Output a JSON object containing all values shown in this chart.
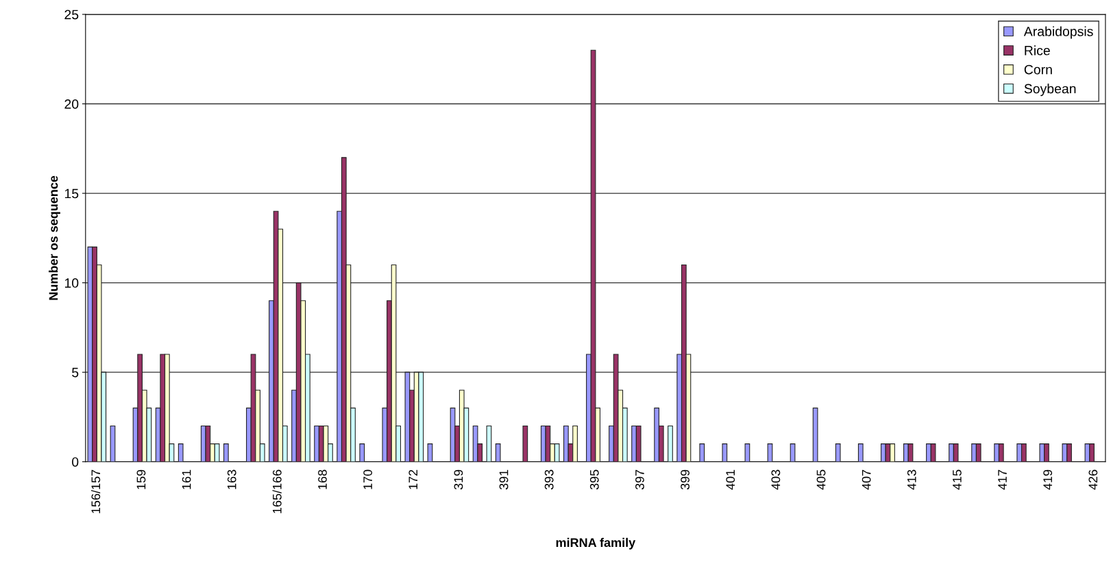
{
  "chart_data": {
    "type": "bar",
    "xlabel": "miRNA family",
    "ylabel": "Number os sequence",
    "categories": [
      "156/157",
      null,
      "159",
      null,
      "161",
      null,
      "163",
      null,
      "165/166",
      null,
      "168",
      null,
      "170",
      null,
      "172",
      null,
      "319",
      null,
      "391",
      null,
      "393",
      null,
      "395",
      null,
      "397",
      null,
      "399",
      null,
      "401",
      null,
      "403",
      null,
      "405",
      null,
      "407",
      null,
      "413",
      null,
      "415",
      null,
      "417",
      null,
      "419",
      null,
      "426"
    ],
    "series": [
      {
        "name": "Arabidopsis",
        "color": "#9999ff",
        "values": [
          12,
          2,
          3,
          3,
          1,
          2,
          1,
          3,
          9,
          4,
          2,
          14,
          1,
          3,
          5,
          1,
          3,
          2,
          1,
          0,
          2,
          2,
          6,
          2,
          2,
          3,
          6,
          1,
          1,
          1,
          1,
          1,
          3,
          1,
          1,
          1,
          1,
          1,
          1,
          1,
          1,
          1,
          1,
          1,
          1
        ]
      },
      {
        "name": "Rice",
        "color": "#993366",
        "values": [
          12,
          0,
          6,
          6,
          0,
          2,
          0,
          6,
          14,
          10,
          2,
          17,
          0,
          9,
          4,
          0,
          2,
          1,
          0,
          2,
          2,
          1,
          23,
          6,
          2,
          2,
          11,
          0,
          0,
          0,
          0,
          0,
          0,
          0,
          0,
          1,
          1,
          1,
          1,
          1,
          1,
          1,
          1,
          1,
          1
        ]
      },
      {
        "name": "Corn",
        "color": "#ffffcc",
        "values": [
          11,
          0,
          4,
          6,
          0,
          1,
          0,
          4,
          13,
          9,
          2,
          11,
          0,
          11,
          5,
          0,
          4,
          0,
          0,
          0,
          1,
          2,
          3,
          4,
          0,
          0,
          6,
          0,
          0,
          0,
          0,
          0,
          0,
          0,
          0,
          1,
          0,
          0,
          0,
          0,
          0,
          0,
          0,
          0,
          0
        ]
      },
      {
        "name": "Soybean",
        "color": "#ccffff",
        "values": [
          5,
          0,
          3,
          1,
          0,
          1,
          0,
          1,
          2,
          6,
          1,
          3,
          0,
          2,
          5,
          0,
          3,
          2,
          0,
          0,
          1,
          0,
          0,
          3,
          0,
          2,
          0,
          0,
          0,
          0,
          0,
          0,
          0,
          0,
          0,
          0,
          0,
          0,
          0,
          0,
          0,
          0,
          0,
          0,
          0
        ]
      }
    ],
    "ylim": [
      0,
      25
    ],
    "yticks": [
      0,
      5,
      10,
      15,
      20,
      25
    ],
    "grid": "y",
    "legend": "top right"
  }
}
